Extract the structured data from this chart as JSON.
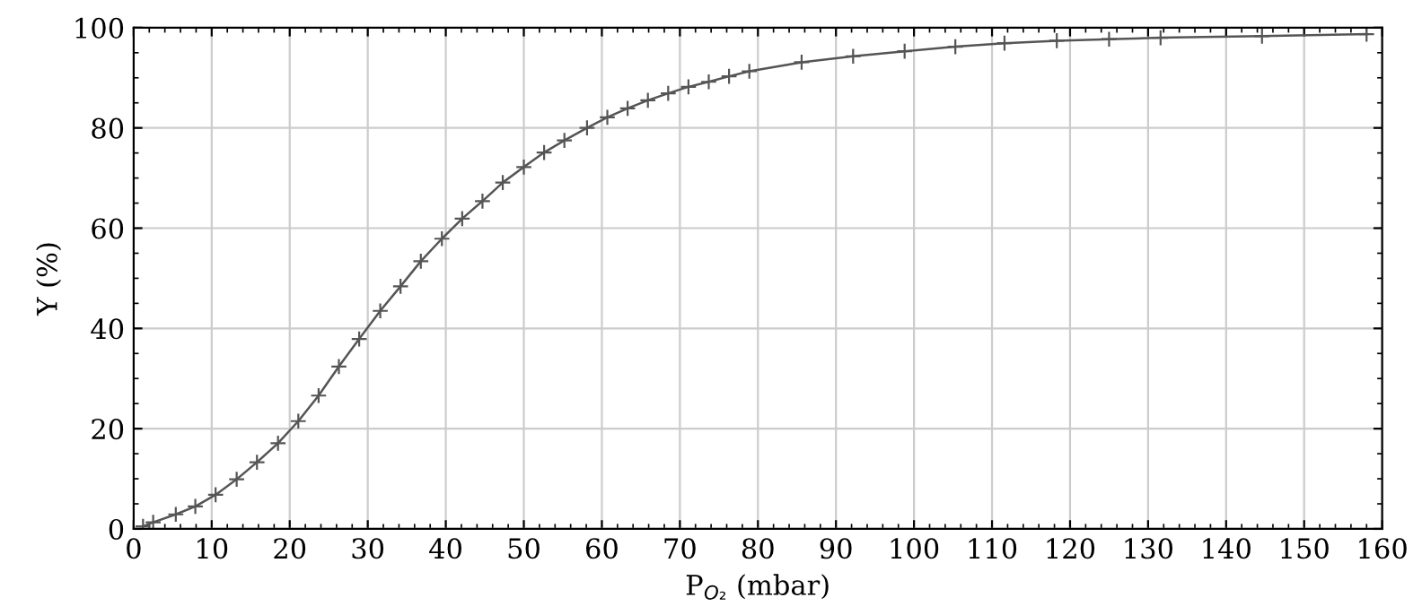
{
  "chart_data": {
    "type": "line",
    "xlabel": "P$_{O₂}$ (mbar)",
    "ylabel": "Y (%)",
    "x": [
      1.2,
      2.5,
      5.4,
      7.9,
      10.5,
      13.2,
      15.8,
      18.5,
      21.1,
      23.7,
      26.3,
      28.9,
      31.6,
      34.2,
      36.8,
      39.5,
      42.1,
      44.7,
      47.3,
      50.0,
      52.6,
      55.2,
      58.1,
      60.7,
      63.3,
      65.9,
      68.5,
      71.1,
      73.7,
      76.3,
      78.9,
      85.6,
      92.2,
      98.8,
      105.3,
      111.6,
      118.3,
      125.0,
      131.6,
      144.6,
      158.0
    ],
    "series": [
      {
        "color": "#555555",
        "values": [
          0.5,
          1.3,
          2.9,
          4.5,
          6.8,
          9.9,
          13.3,
          17.1,
          21.5,
          26.6,
          32.4,
          37.9,
          43.5,
          48.4,
          53.4,
          57.9,
          61.9,
          65.4,
          69.1,
          72.2,
          75.1,
          77.5,
          80.0,
          82.1,
          83.9,
          85.5,
          86.9,
          88.2,
          89.2,
          90.3,
          91.3,
          93.1,
          94.3,
          95.3,
          96.2,
          96.9,
          97.4,
          97.7,
          98.0,
          98.3,
          98.7
        ]
      }
    ],
    "xlim": [
      0,
      160
    ],
    "ylim": [
      0,
      100
    ],
    "xticks": [
      0,
      10,
      20,
      30,
      40,
      50,
      60,
      70,
      80,
      90,
      100,
      110,
      120,
      130,
      140,
      150,
      160
    ],
    "yticks": [
      0,
      20,
      40,
      60,
      80,
      100
    ],
    "grid": true,
    "marker": "cross",
    "line_style": "solid"
  }
}
